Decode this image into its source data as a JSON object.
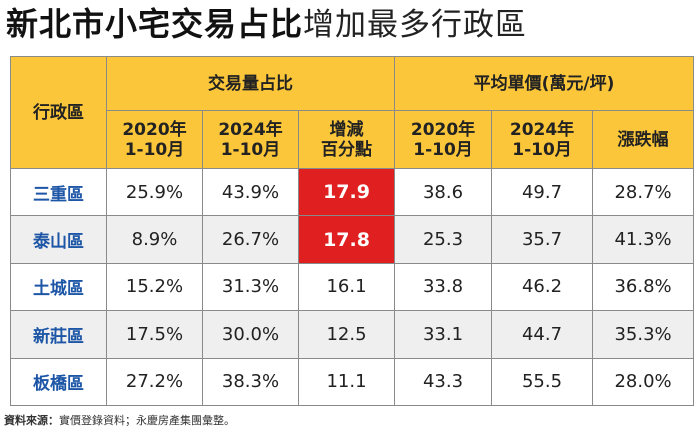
{
  "title": {
    "bold": "新北市小宅交易占比",
    "light": "增加最多行政區"
  },
  "table": {
    "district_header": "行政區",
    "group_share": "交易量占比",
    "group_price": "平均單價(萬元/坪)",
    "sub": {
      "share_2020": "2020年\n1-10月",
      "share_2024": "2024年\n1-10月",
      "change": "增減\n百分點",
      "price_2020": "2020年\n1-10月",
      "price_2024": "2024年\n1-10月",
      "price_change": "漲跌幅"
    },
    "rows": [
      {
        "district": "三重區",
        "share_2020": "25.9%",
        "share_2024": "43.9%",
        "change": "17.9",
        "price_2020": "38.6",
        "price_2024": "49.7",
        "price_change": "28.7%",
        "highlight": true
      },
      {
        "district": "泰山區",
        "share_2020": "8.9%",
        "share_2024": "26.7%",
        "change": "17.8",
        "price_2020": "25.3",
        "price_2024": "35.7",
        "price_change": "41.3%",
        "highlight": true
      },
      {
        "district": "土城區",
        "share_2020": "15.2%",
        "share_2024": "31.3%",
        "change": "16.1",
        "price_2020": "33.8",
        "price_2024": "46.2",
        "price_change": "36.8%",
        "highlight": false
      },
      {
        "district": "新莊區",
        "share_2020": "17.5%",
        "share_2024": "30.0%",
        "change": "12.5",
        "price_2020": "33.1",
        "price_2024": "44.7",
        "price_change": "35.3%",
        "highlight": false
      },
      {
        "district": "板橋區",
        "share_2020": "27.2%",
        "share_2024": "38.3%",
        "change": "11.1",
        "price_2020": "43.3",
        "price_2024": "55.5",
        "price_change": "28.0%",
        "highlight": false
      }
    ]
  },
  "source": {
    "label": "資料來源：",
    "text": "實價登錄資料；永慶房產集團彙整。"
  },
  "colors": {
    "header_bg": "#fbc63a",
    "district_text": "#1d56a6",
    "highlight_bg": "#e02020",
    "alt_row_bg": "#efefef"
  }
}
